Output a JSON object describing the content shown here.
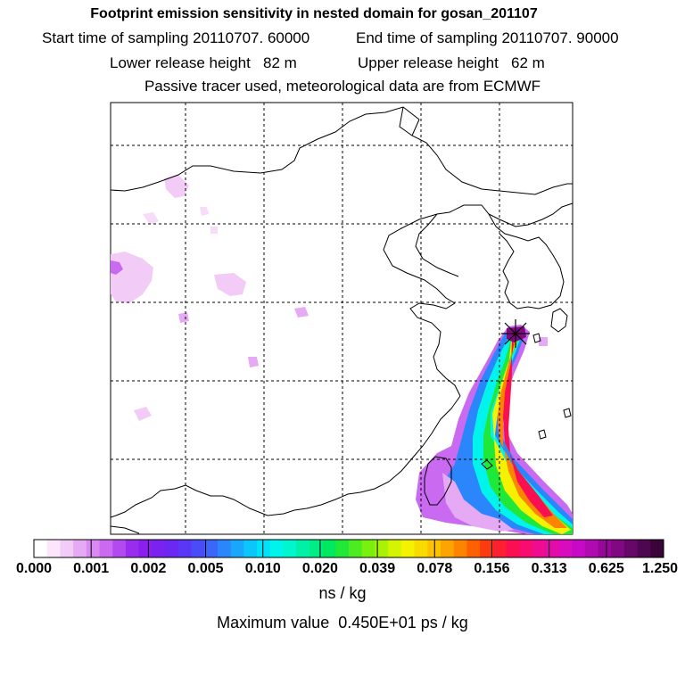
{
  "header": {
    "title": "Footprint emission sensitivity in nested domain for gosan_201107",
    "start_sampling": "Start time of sampling 20110707. 60000",
    "end_sampling": "End time of sampling 20110707. 90000",
    "lower_release": "Lower release height   82 m",
    "upper_release": "Upper release height   62 m",
    "tracer_note": "Passive tracer used, meteorological data are from ECMWF"
  },
  "chart_data": {
    "type": "heatmap",
    "title": "Footprint emission sensitivity in nested domain for gosan_201107",
    "colorbar": {
      "tick_labels": [
        "0.000",
        "0.001",
        "0.002",
        "0.005",
        "0.010",
        "0.020",
        "0.039",
        "0.078",
        "0.156",
        "0.313",
        "0.625",
        "1.250"
      ],
      "units": "ns / kg",
      "colors": [
        "#ffffff",
        "#fbe6fb",
        "#f2ccf7",
        "#e6aaf4",
        "#d98af2",
        "#c96af0",
        "#b34af0",
        "#9a2cee",
        "#8a1ff0",
        "#7a22ee",
        "#6a28f2",
        "#5a36f6",
        "#4a4cf8",
        "#3a66fa",
        "#2a86fa",
        "#1aa6fa",
        "#0ac6fa",
        "#00e2f8",
        "#00f4ec",
        "#00f6cc",
        "#00f0a8",
        "#00ec84",
        "#00e860",
        "#20e838",
        "#4cec20",
        "#7af010",
        "#a8f208",
        "#d4f404",
        "#f4f200",
        "#f8dc00",
        "#fcc200",
        "#fca400",
        "#fc8400",
        "#fc6000",
        "#fc3c10",
        "#fc2030",
        "#fa1050",
        "#f80c70",
        "#f00c90",
        "#e40ca8",
        "#d80cbc",
        "#c80ac8",
        "#b00ab0",
        "#980898",
        "#800880",
        "#660868",
        "#4e0650",
        "#3a0438"
      ]
    },
    "max_value": "Maximum value  0.450E+01 ps / kg",
    "receptor": "gosan"
  }
}
